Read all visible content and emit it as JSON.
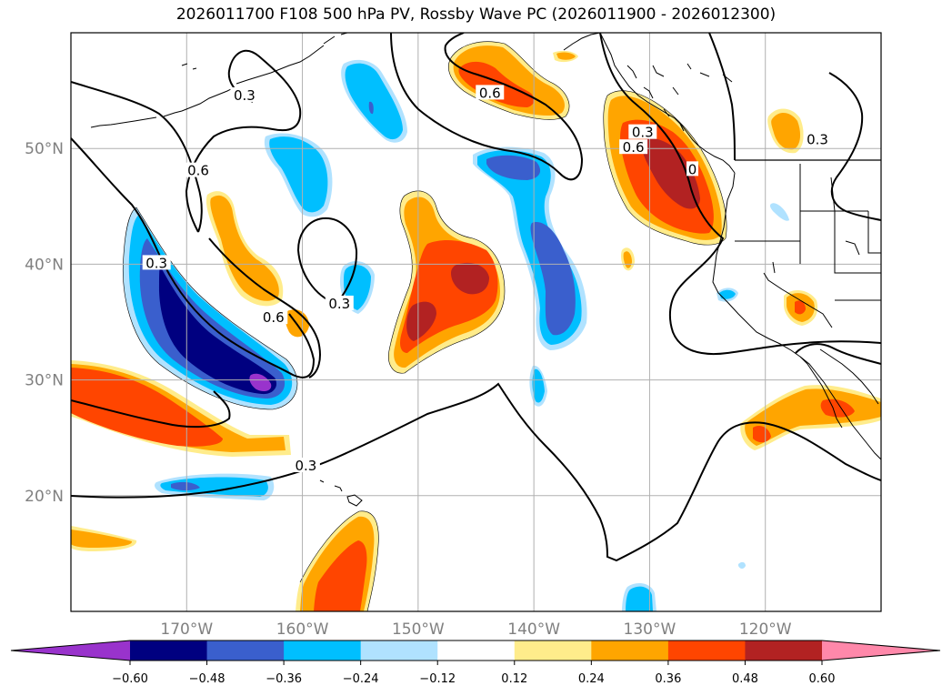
{
  "title": "2026011700 F108 500 hPa PV, Rossby Wave PC (2026011900 - 2026012300)",
  "map": {
    "lon_range": [
      -180,
      -110
    ],
    "lat_range": [
      10,
      60
    ],
    "lon_ticks": [
      {
        "value": -170,
        "label": "170°W"
      },
      {
        "value": -160,
        "label": "160°W"
      },
      {
        "value": -150,
        "label": "150°W"
      },
      {
        "value": -140,
        "label": "140°W"
      },
      {
        "value": -130,
        "label": "130°W"
      },
      {
        "value": -120,
        "label": "120°W"
      }
    ],
    "lat_ticks": [
      {
        "value": 20,
        "label": "20°N"
      },
      {
        "value": 30,
        "label": "30°N"
      },
      {
        "value": 40,
        "label": "40°N"
      },
      {
        "value": 50,
        "label": "50°N"
      }
    ],
    "contour_labels": [
      {
        "text": "0.3",
        "lon": -165.0,
        "lat": 54.5
      },
      {
        "text": "0.6",
        "lon": -169.0,
        "lat": 48.0
      },
      {
        "text": "0.3",
        "lon": -172.6,
        "lat": 40.0
      },
      {
        "text": "0.6",
        "lon": -162.5,
        "lat": 35.3
      },
      {
        "text": "0.3",
        "lon": -156.8,
        "lat": 36.5
      },
      {
        "text": "0.6",
        "lon": -143.8,
        "lat": 54.7
      },
      {
        "text": "0.3",
        "lon": -159.7,
        "lat": 22.5
      },
      {
        "text": "0.3",
        "lon": -115.5,
        "lat": 50.7
      },
      {
        "text": "0.6",
        "lon": -131.4,
        "lat": 50.0
      },
      {
        "text": "0.3",
        "lon": -130.6,
        "lat": 51.3
      },
      {
        "text": "0",
        "lon": -126.3,
        "lat": 48.1
      }
    ]
  },
  "colorbar": {
    "levels": [
      -0.72,
      -0.6,
      -0.48,
      -0.36,
      -0.24,
      -0.12,
      0.12,
      0.24,
      0.36,
      0.48,
      0.6,
      0.72
    ],
    "colors": [
      "#9933cc",
      "#000080",
      "#3a5fcd",
      "#00bfff",
      "#b0e2ff",
      "#ffffff",
      "#ffec8b",
      "#ffa500",
      "#ff4500",
      "#b22222",
      "#ff88aa"
    ],
    "tick_labels": [
      "−0.60",
      "−0.48",
      "−0.36",
      "−0.24",
      "−0.12",
      "0.12",
      "0.24",
      "0.36",
      "0.48",
      "0.60"
    ]
  },
  "colors": {
    "grid": "#b0b0b0",
    "coast": "#000000",
    "tick_text": "#808080"
  }
}
